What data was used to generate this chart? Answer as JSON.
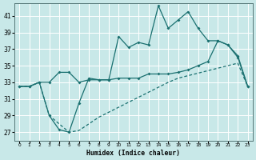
{
  "xlabel": "Humidex (Indice chaleur)",
  "bg_color": "#c8e8e8",
  "grid_color": "#b0d0d0",
  "line_color": "#1a7070",
  "xlim": [
    -0.5,
    23.5
  ],
  "ylim": [
    26.0,
    42.5
  ],
  "xticks": [
    0,
    1,
    2,
    3,
    4,
    5,
    6,
    7,
    8,
    9,
    10,
    11,
    12,
    13,
    14,
    15,
    16,
    17,
    18,
    19,
    20,
    21,
    22,
    23
  ],
  "yticks": [
    27,
    29,
    31,
    33,
    35,
    37,
    39,
    41
  ],
  "line1_x": [
    0,
    1,
    2,
    3,
    4,
    5,
    6,
    7,
    8,
    9,
    10,
    11,
    12,
    13,
    14,
    15,
    16,
    17,
    18,
    19,
    20,
    21,
    22,
    23
  ],
  "line1_y": [
    32.5,
    32.5,
    33.0,
    33.0,
    34.2,
    34.2,
    33.0,
    33.3,
    33.3,
    33.3,
    38.5,
    37.2,
    37.8,
    37.5,
    42.2,
    39.5,
    40.5,
    41.5,
    39.5,
    38.0,
    38.0,
    37.5,
    36.2,
    32.5
  ],
  "line2_x": [
    0,
    1,
    2,
    3,
    4,
    5,
    6,
    7,
    8,
    9,
    10,
    11,
    12,
    13,
    14,
    15,
    16,
    17,
    18,
    19,
    20,
    21,
    22,
    23
  ],
  "line2_y": [
    32.5,
    32.5,
    33.0,
    29.0,
    28.0,
    27.0,
    27.2,
    28.0,
    28.8,
    29.4,
    30.0,
    30.6,
    31.2,
    31.8,
    32.4,
    33.0,
    33.5,
    33.8,
    34.1,
    34.4,
    34.7,
    35.0,
    35.3,
    32.5
  ],
  "line3_x": [
    0,
    1,
    2,
    3,
    4,
    5,
    6,
    7,
    8,
    9,
    10,
    11,
    12,
    13,
    14,
    15,
    16,
    17,
    18,
    19,
    20,
    21,
    22,
    23
  ],
  "line3_y": [
    32.5,
    32.5,
    33.0,
    29.0,
    27.3,
    27.0,
    30.5,
    33.5,
    33.3,
    33.3,
    33.5,
    33.5,
    33.5,
    34.0,
    34.0,
    34.0,
    34.2,
    34.5,
    35.0,
    35.5,
    38.0,
    37.5,
    36.0,
    32.5
  ]
}
